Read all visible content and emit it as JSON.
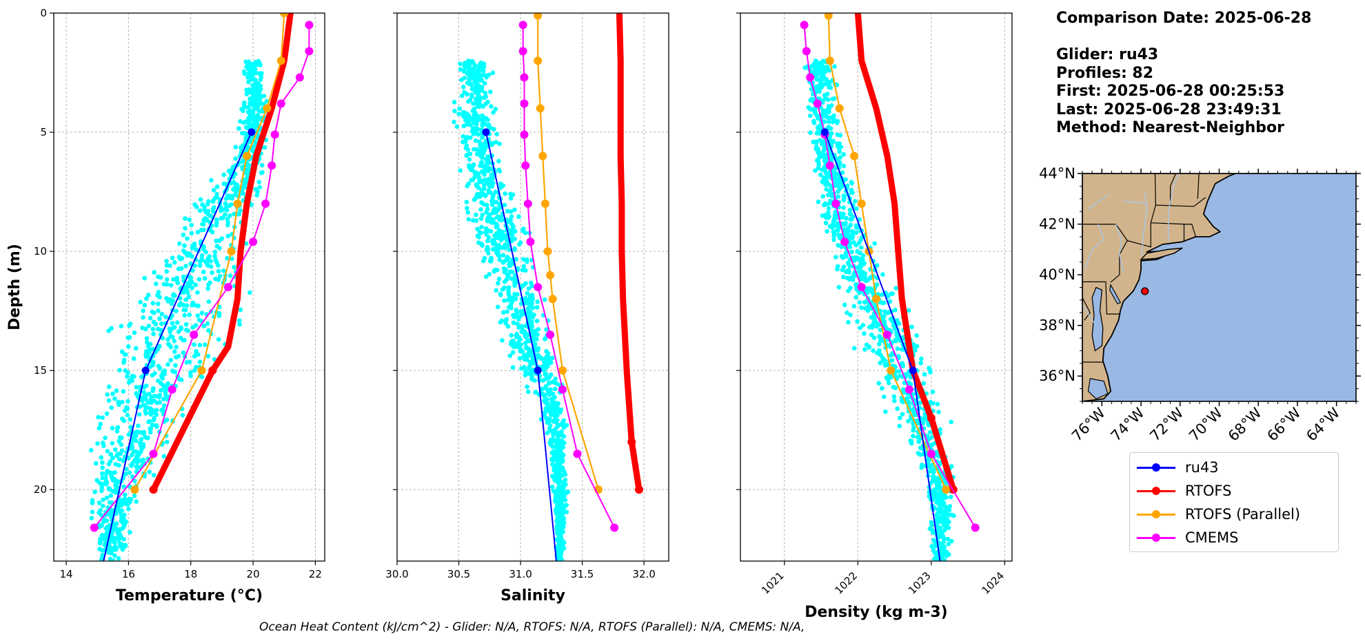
{
  "info": {
    "comparison_date": "Comparison Date: 2025-06-28",
    "glider": "Glider: ru43",
    "profiles": "Profiles: 82",
    "first": "First: 2025-06-28 00:25:53",
    "last": "Last: 2025-06-28 23:49:31",
    "method": "Method: Nearest-Neighbor"
  },
  "footer": "Ocean Heat Content (kJ/cm^2) - Glider: N/A,  RTOFS: N/A,  RTOFS (Parallel): N/A,  CMEMS: N/A,",
  "colors": {
    "scatter": "#00ffff",
    "ru43": "#0000ff",
    "rtofs": "#ff0000",
    "rtofs_parallel": "#ffa500",
    "cmems": "#ff00ff",
    "land": "#d2b48c",
    "ocean": "#99b8e3",
    "river": "#a6c8e8"
  },
  "legend": [
    {
      "label": "ru43",
      "color": "#0000ff"
    },
    {
      "label": "RTOFS",
      "color": "#ff0000"
    },
    {
      "label": "RTOFS (Parallel)",
      "color": "#ffa500"
    },
    {
      "label": "CMEMS",
      "color": "#ff00ff"
    }
  ],
  "chart_data": [
    {
      "type": "line",
      "panel": "temperature",
      "xlabel": "Temperature (°C)",
      "ylabel": "Depth (m)",
      "xlim": [
        13.6,
        22.3
      ],
      "ylim": [
        23,
        0
      ],
      "xticks": [
        14,
        16,
        18,
        20,
        22
      ],
      "yticks": [
        0,
        5,
        10,
        15,
        20
      ],
      "grid": true,
      "series": [
        {
          "name": "ru43",
          "x": [
            19.95,
            16.55,
            15.2
          ],
          "y": [
            5,
            15,
            23
          ]
        },
        {
          "name": "RTOFS",
          "x": [
            21.2,
            21.0,
            20.6,
            20.1,
            19.8,
            19.6,
            19.5,
            19.35,
            19.2,
            18.7,
            16.8
          ],
          "y": [
            0,
            2,
            4,
            6,
            8,
            10,
            12,
            13,
            14,
            15,
            20
          ]
        },
        {
          "name": "RTOFS (Parallel)",
          "x": [
            21.0,
            20.9,
            20.45,
            19.8,
            19.5,
            19.3,
            18.35,
            16.2
          ],
          "y": [
            0,
            2,
            4,
            6,
            8,
            10,
            15,
            20
          ]
        },
        {
          "name": "CMEMS",
          "x": [
            21.8,
            21.8,
            21.5,
            20.9,
            20.7,
            20.6,
            20.4,
            20.0,
            19.2,
            18.1,
            17.4,
            16.8,
            14.9
          ],
          "y": [
            0.5,
            1.6,
            2.7,
            3.8,
            5.1,
            6.4,
            8.0,
            9.6,
            11.5,
            13.5,
            15.8,
            18.5,
            21.6
          ]
        }
      ],
      "scatter_envelope": {
        "depth": [
          2,
          4,
          6,
          9,
          12,
          14,
          16,
          18,
          20,
          23
        ],
        "min": [
          19.6,
          19.5,
          19.2,
          17.0,
          15.5,
          14.8,
          14.7,
          14.5,
          14.5,
          14.7
        ],
        "max": [
          20.4,
          20.6,
          20.6,
          20.3,
          20.2,
          19.6,
          18.5,
          17.8,
          16.8,
          16.0
        ]
      }
    },
    {
      "type": "line",
      "panel": "salinity",
      "xlabel": "Salinity",
      "xlim": [
        30.0,
        32.2
      ],
      "ylim": [
        23,
        0
      ],
      "xticks": [
        30.0,
        30.5,
        31.0,
        31.5,
        32.0
      ],
      "yticks": [
        0,
        5,
        10,
        15,
        20
      ],
      "grid": true,
      "series": [
        {
          "name": "ru43",
          "x": [
            30.72,
            31.14,
            31.29
          ],
          "y": [
            5,
            15,
            23
          ]
        },
        {
          "name": "RTOFS",
          "x": [
            31.8,
            31.81,
            31.81,
            31.81,
            31.82,
            31.82,
            31.83,
            31.84,
            31.86,
            31.9,
            31.96
          ],
          "y": [
            0,
            2,
            4,
            6,
            8,
            10,
            12,
            13,
            15,
            18,
            20
          ]
        },
        {
          "name": "RTOFS (Parallel)",
          "x": [
            31.14,
            31.14,
            31.16,
            31.18,
            31.2,
            31.22,
            31.24,
            31.26,
            31.34,
            31.63
          ],
          "y": [
            0.1,
            2,
            4,
            6,
            8,
            10,
            11,
            12,
            15,
            20
          ]
        },
        {
          "name": "CMEMS",
          "x": [
            31.02,
            31.02,
            31.03,
            31.03,
            31.03,
            31.04,
            31.06,
            31.08,
            31.14,
            31.24,
            31.34,
            31.46,
            31.76
          ],
          "y": [
            0.5,
            1.6,
            2.7,
            3.8,
            5.1,
            6.4,
            8.0,
            9.6,
            11.5,
            13.5,
            15.8,
            18.5,
            21.6
          ]
        }
      ],
      "scatter_envelope": {
        "depth": [
          2,
          4,
          6,
          9,
          12,
          14,
          16,
          18,
          20,
          23
        ],
        "min": [
          30.45,
          30.4,
          30.45,
          30.5,
          30.7,
          30.8,
          31.05,
          31.2,
          31.25,
          31.28
        ],
        "max": [
          30.8,
          30.85,
          30.9,
          31.1,
          31.25,
          31.35,
          31.4,
          31.4,
          31.4,
          31.35
        ]
      }
    },
    {
      "type": "line",
      "panel": "density",
      "xlabel": "Density (kg m-3)",
      "xlim": [
        1020.4,
        1024.1
      ],
      "ylim": [
        23,
        0
      ],
      "xticks": [
        1021,
        1022,
        1023,
        1024
      ],
      "yticks": [
        0,
        5,
        10,
        15,
        20
      ],
      "grid": true,
      "series": [
        {
          "name": "ru43",
          "x": [
            1021.55,
            1022.75,
            1023.12
          ],
          "y": [
            5,
            15,
            23
          ]
        },
        {
          "name": "RTOFS",
          "x": [
            1022.0,
            1022.05,
            1022.25,
            1022.4,
            1022.5,
            1022.55,
            1022.6,
            1022.65,
            1022.75,
            1023.0,
            1023.3
          ],
          "y": [
            0,
            2,
            4,
            6,
            8,
            10,
            12,
            13,
            15,
            17,
            20
          ]
        },
        {
          "name": "RTOFS (Parallel)",
          "x": [
            1021.6,
            1021.62,
            1021.75,
            1021.95,
            1022.05,
            1022.15,
            1022.25,
            1022.45,
            1023.2
          ],
          "y": [
            0.1,
            2,
            4,
            6,
            8,
            10,
            12,
            15,
            20
          ]
        },
        {
          "name": "CMEMS",
          "x": [
            1021.27,
            1021.3,
            1021.35,
            1021.45,
            1021.55,
            1021.62,
            1021.7,
            1021.82,
            1022.05,
            1022.4,
            1022.7,
            1023.0,
            1023.6
          ],
          "y": [
            0.5,
            1.6,
            2.7,
            3.8,
            5.1,
            6.4,
            8.0,
            9.6,
            11.5,
            13.5,
            15.8,
            18.5,
            21.6
          ]
        }
      ],
      "scatter_envelope": {
        "depth": [
          2,
          4,
          6,
          9,
          12,
          14,
          16,
          18,
          20,
          23
        ],
        "min": [
          1021.25,
          1021.2,
          1021.3,
          1021.4,
          1021.7,
          1021.9,
          1022.2,
          1022.6,
          1022.9,
          1022.95
        ],
        "max": [
          1021.7,
          1021.8,
          1021.9,
          1022.2,
          1022.7,
          1023.0,
          1023.3,
          1023.35,
          1023.35,
          1023.3
        ]
      }
    }
  ],
  "map": {
    "lat_range": [
      35,
      44
    ],
    "lon_range": [
      -77,
      -63
    ],
    "lat_labels": [
      "44°N",
      "42°N",
      "40°N",
      "38°N",
      "36°N"
    ],
    "lat_values": [
      44,
      42,
      40,
      38,
      36
    ],
    "lon_labels": [
      "76°W",
      "74°W",
      "72°W",
      "70°W",
      "68°W",
      "66°W",
      "64°W"
    ],
    "lon_values": [
      -76,
      -74,
      -72,
      -70,
      -68,
      -66,
      -64
    ],
    "glider_position": {
      "lat": 39.35,
      "lon": -73.8
    }
  }
}
